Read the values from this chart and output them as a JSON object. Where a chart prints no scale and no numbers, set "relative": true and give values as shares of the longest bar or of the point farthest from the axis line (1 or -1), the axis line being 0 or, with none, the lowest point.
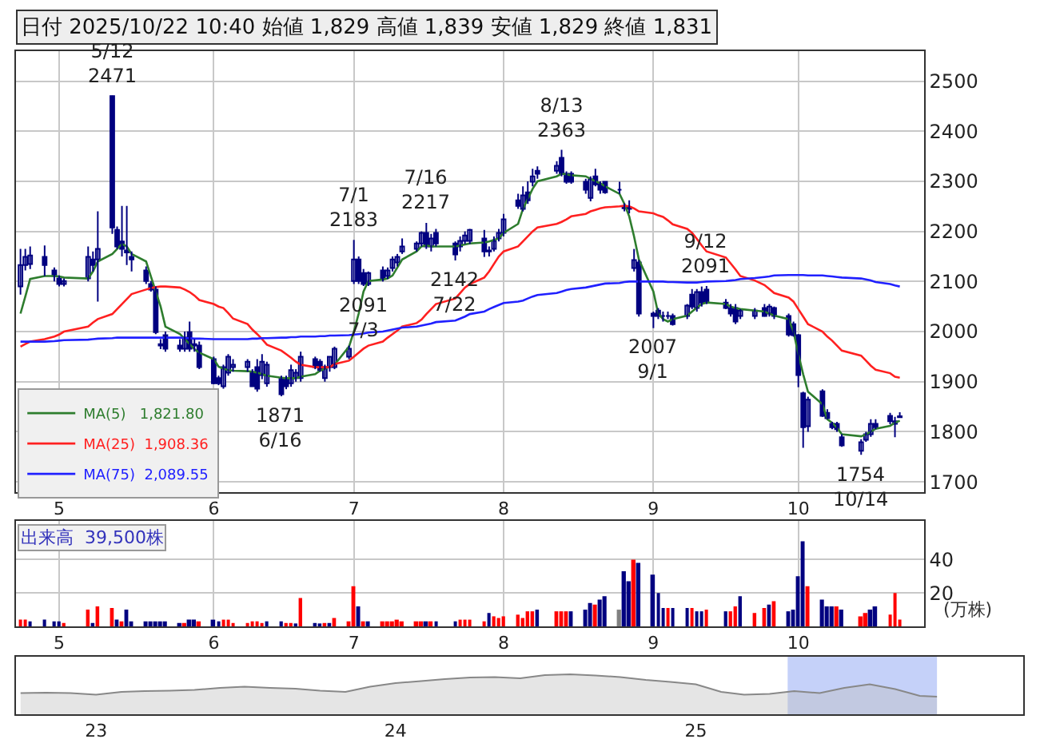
{
  "chart_data": [
    {
      "type": "candlestick",
      "title": "日付 2025/10/22 10:40 始値 1,829 高値 1,839 安値 1,829 終値 1,831",
      "x": [
        "2025-04-23",
        "2025-04-24",
        "2025-04-25",
        "2025-04-28",
        "2025-04-30",
        "2025-05-01",
        "2025-05-02",
        "2025-05-07",
        "2025-05-08",
        "2025-05-09",
        "2025-05-12",
        "2025-05-13",
        "2025-05-14",
        "2025-05-15",
        "2025-05-16",
        "2025-05-19",
        "2025-05-20",
        "2025-05-21",
        "2025-05-22",
        "2025-05-23",
        "2025-05-26",
        "2025-05-27",
        "2025-05-28",
        "2025-05-29",
        "2025-05-30",
        "2025-06-02",
        "2025-06-03",
        "2025-06-04",
        "2025-06-05",
        "2025-06-06",
        "2025-06-09",
        "2025-06-10",
        "2025-06-11",
        "2025-06-12",
        "2025-06-13",
        "2025-06-16",
        "2025-06-17",
        "2025-06-18",
        "2025-06-19",
        "2025-06-20",
        "2025-06-23",
        "2025-06-24",
        "2025-06-25",
        "2025-06-26",
        "2025-06-27",
        "2025-06-30",
        "2025-07-01",
        "2025-07-02",
        "2025-07-03",
        "2025-07-04",
        "2025-07-07",
        "2025-07-08",
        "2025-07-09",
        "2025-07-10",
        "2025-07-11",
        "2025-07-14",
        "2025-07-15",
        "2025-07-16",
        "2025-07-17",
        "2025-07-18",
        "2025-07-22",
        "2025-07-23",
        "2025-07-24",
        "2025-07-25",
        "2025-07-28",
        "2025-07-29",
        "2025-07-30",
        "2025-07-31",
        "2025-08-01",
        "2025-08-04",
        "2025-08-05",
        "2025-08-06",
        "2025-08-07",
        "2025-08-08",
        "2025-08-12",
        "2025-08-13",
        "2025-08-14",
        "2025-08-15",
        "2025-08-18",
        "2025-08-19",
        "2025-08-20",
        "2025-08-21",
        "2025-08-22",
        "2025-08-25",
        "2025-08-26",
        "2025-08-27",
        "2025-08-28",
        "2025-08-29",
        "2025-09-01",
        "2025-09-02",
        "2025-09-03",
        "2025-09-04",
        "2025-09-05",
        "2025-09-08",
        "2025-09-09",
        "2025-09-10",
        "2025-09-11",
        "2025-09-12",
        "2025-09-16",
        "2025-09-17",
        "2025-09-18",
        "2025-09-19",
        "2025-09-22",
        "2025-09-24",
        "2025-09-25",
        "2025-09-26",
        "2025-09-29",
        "2025-09-30",
        "2025-10-01",
        "2025-10-02",
        "2025-10-03",
        "2025-10-06",
        "2025-10-07",
        "2025-10-08",
        "2025-10-09",
        "2025-10-10",
        "2025-10-14",
        "2025-10-15",
        "2025-10-16",
        "2025-10-17",
        "2025-10-20",
        "2025-10-21",
        "2025-10-22"
      ],
      "ohlc": [
        [
          2090,
          2165,
          2074,
          2133
        ],
        [
          2133,
          2165,
          2122,
          2149
        ],
        [
          2135,
          2170,
          2125,
          2152
        ],
        [
          2149,
          2172,
          2111,
          2133
        ],
        [
          2122,
          2128,
          2100,
          2111
        ],
        [
          2106,
          2112,
          2090,
          2095
        ],
        [
          2095,
          2106,
          2090,
          2101
        ],
        [
          2106,
          2170,
          2100,
          2149
        ],
        [
          2144,
          2160,
          2120,
          2133
        ],
        [
          2144,
          2240,
          2060,
          2165
        ],
        [
          2470,
          2471,
          2195,
          2208
        ],
        [
          2203,
          2210,
          2165,
          2170
        ],
        [
          2180,
          2251,
          2150,
          2165
        ],
        [
          2162,
          2251,
          2133,
          2158
        ],
        [
          2149,
          2160,
          2120,
          2144
        ],
        [
          2122,
          2130,
          2095,
          2101
        ],
        [
          2095,
          2101,
          2080,
          2084
        ],
        [
          2084,
          2090,
          1995,
          1999
        ],
        [
          1975,
          1985,
          1965,
          1972
        ],
        [
          1993,
          2000,
          1960,
          1966
        ],
        [
          1972,
          1985,
          1960,
          1966
        ],
        [
          1966,
          2000,
          1960,
          1988
        ],
        [
          1999,
          2020,
          1960,
          1966
        ],
        [
          1975,
          1985,
          1960,
          1972
        ],
        [
          1972,
          1980,
          1925,
          1929
        ],
        [
          1945,
          1950,
          1895,
          1897
        ],
        [
          1907,
          1912,
          1893,
          1897
        ],
        [
          1891,
          1934,
          1886,
          1929
        ],
        [
          1918,
          1955,
          1912,
          1950
        ],
        [
          1929,
          1945,
          1920,
          1934
        ],
        [
          1929,
          1945,
          1920,
          1940
        ],
        [
          1918,
          1925,
          1890,
          1891
        ],
        [
          1929,
          1945,
          1880,
          1886
        ],
        [
          1913,
          1955,
          1905,
          1940
        ],
        [
          1897,
          1940,
          1890,
          1934
        ],
        [
          1907,
          1912,
          1871,
          1875
        ],
        [
          1907,
          1912,
          1885,
          1891
        ],
        [
          1897,
          1934,
          1890,
          1923
        ],
        [
          1907,
          1925,
          1900,
          1918
        ],
        [
          1907,
          1960,
          1900,
          1950
        ],
        [
          1945,
          1950,
          1925,
          1929
        ],
        [
          1940,
          1945,
          1920,
          1923
        ],
        [
          1907,
          1934,
          1900,
          1929
        ],
        [
          1929,
          1950,
          1920,
          1950
        ],
        [
          1929,
          1970,
          1925,
          1966
        ],
        [
          1950,
          1972,
          1945,
          1966
        ],
        [
          2101,
          2183,
          2095,
          2144
        ],
        [
          2144,
          2150,
          2095,
          2101
        ],
        [
          2117,
          2125,
          2091,
          2095
        ],
        [
          2095,
          2120,
          2091,
          2117
        ],
        [
          2122,
          2130,
          2100,
          2106
        ],
        [
          2111,
          2128,
          2105,
          2122
        ],
        [
          2127,
          2150,
          2120,
          2144
        ],
        [
          2138,
          2155,
          2130,
          2149
        ],
        [
          2160,
          2186,
          2155,
          2170
        ],
        [
          2165,
          2180,
          2160,
          2176
        ],
        [
          2176,
          2200,
          2170,
          2197
        ],
        [
          2197,
          2217,
          2165,
          2170
        ],
        [
          2170,
          2195,
          2160,
          2186
        ],
        [
          2197,
          2205,
          2170,
          2176
        ],
        [
          2176,
          2180,
          2142,
          2154
        ],
        [
          2170,
          2190,
          2160,
          2181
        ],
        [
          2181,
          2200,
          2175,
          2192
        ],
        [
          2181,
          2205,
          2175,
          2203
        ],
        [
          2186,
          2203,
          2149,
          2160
        ],
        [
          2160,
          2170,
          2150,
          2162
        ],
        [
          2165,
          2190,
          2160,
          2181
        ],
        [
          2186,
          2205,
          2180,
          2197
        ],
        [
          2197,
          2235,
          2190,
          2224
        ],
        [
          2262,
          2275,
          2245,
          2251
        ],
        [
          2245,
          2290,
          2240,
          2272
        ],
        [
          2278,
          2300,
          2255,
          2262
        ],
        [
          2299,
          2325,
          2290,
          2310
        ],
        [
          2321,
          2330,
          2305,
          2315
        ],
        [
          2321,
          2340,
          2315,
          2331
        ],
        [
          2347,
          2363,
          2310,
          2315
        ],
        [
          2315,
          2320,
          2295,
          2299
        ],
        [
          2315,
          2320,
          2295,
          2299
        ],
        [
          2299,
          2305,
          2275,
          2283
        ],
        [
          2267,
          2310,
          2260,
          2304
        ],
        [
          2310,
          2325,
          2290,
          2294
        ],
        [
          2294,
          2300,
          2275,
          2283
        ],
        [
          2299,
          2300,
          2275,
          2278
        ],
        [
          2283,
          2299,
          2275,
          2283
        ],
        [
          2251,
          2256,
          2240,
          2246
        ],
        [
          2248,
          2262,
          2236,
          2245
        ],
        [
          2127,
          2165,
          2120,
          2143
        ],
        [
          2138,
          2143,
          2030,
          2036
        ],
        [
          2036,
          2040,
          2007,
          2031
        ],
        [
          2042,
          2047,
          2025,
          2031
        ],
        [
          2031,
          2040,
          2020,
          2031
        ],
        [
          2031,
          2040,
          2025,
          2031
        ],
        [
          2031,
          2036,
          2012,
          2015
        ],
        [
          2031,
          2055,
          2025,
          2052
        ],
        [
          2074,
          2085,
          2045,
          2050
        ],
        [
          2047,
          2085,
          2040,
          2079
        ],
        [
          2079,
          2090,
          2050,
          2058
        ],
        [
          2084,
          2091,
          2055,
          2060
        ],
        [
          2058,
          2065,
          2045,
          2047
        ],
        [
          2047,
          2055,
          2030,
          2036
        ],
        [
          2047,
          2055,
          2015,
          2020
        ],
        [
          2031,
          2045,
          2025,
          2042
        ],
        [
          2031,
          2047,
          2025,
          2042
        ],
        [
          2047,
          2055,
          2030,
          2031
        ],
        [
          2036,
          2055,
          2030,
          2050
        ],
        [
          2047,
          2050,
          2025,
          2031
        ],
        [
          2031,
          2036,
          1990,
          1994
        ],
        [
          2015,
          2020,
          1990,
          1993
        ],
        [
          1993,
          1995,
          1889,
          1913
        ],
        [
          1877,
          1880,
          1768,
          1809
        ],
        [
          1811,
          1870,
          1800,
          1864
        ],
        [
          1881,
          1885,
          1830,
          1832
        ],
        [
          1838,
          1845,
          1825,
          1827
        ],
        [
          1816,
          1820,
          1805,
          1809
        ],
        [
          1816,
          1820,
          1800,
          1805
        ],
        [
          1789,
          1795,
          1770,
          1773
        ],
        [
          1762,
          1785,
          1754,
          1779
        ],
        [
          1784,
          1800,
          1780,
          1795
        ],
        [
          1795,
          1825,
          1790,
          1816
        ],
        [
          1816,
          1825,
          1805,
          1809
        ],
        [
          1832,
          1838,
          1815,
          1821
        ],
        [
          1816,
          1830,
          1789,
          1821
        ],
        [
          1829,
          1839,
          1829,
          1831
        ]
      ],
      "series": [
        {
          "name": "MA(5)   1,821.80",
          "type": "line",
          "color": "#2e7d2e",
          "values": [
            2036,
            2070,
            2105,
            2111,
            2111,
            2110,
            2108,
            2106,
            2120,
            2140,
            2155,
            2165,
            2175,
            2170,
            2155,
            2140,
            2110,
            2080,
            2050,
            2010,
            1995,
            1985,
            1975,
            1965,
            1958,
            1945,
            1930,
            1926,
            1923,
            1922,
            1921,
            1920,
            1918,
            1915,
            1912,
            1908,
            1907,
            1907,
            1907,
            1910,
            1915,
            1922,
            1926,
            1930,
            1934,
            1970,
            2000,
            2036,
            2080,
            2101,
            2104,
            2106,
            2112,
            2128,
            2144,
            2160,
            2170,
            2172,
            2170,
            2170,
            2170,
            2172,
            2174,
            2176,
            2178,
            2180,
            2183,
            2186,
            2197,
            2215,
            2245,
            2265,
            2285,
            2300,
            2310,
            2315,
            2314,
            2312,
            2310,
            2305,
            2300,
            2296,
            2290,
            2275,
            2255,
            2230,
            2190,
            2144,
            2080,
            2036,
            2025,
            2020,
            2025,
            2032,
            2040,
            2048,
            2055,
            2058,
            2055,
            2050,
            2047,
            2045,
            2042,
            2040,
            2036,
            2032,
            2025,
            2000,
            1955,
            1915,
            1880,
            1855,
            1825,
            1818,
            1808,
            1795,
            1791,
            1795,
            1800,
            1806,
            1812,
            1818,
            1822
          ]
        },
        {
          "name": "MA(25)  1,908.36",
          "type": "line",
          "color": "#ff2020",
          "values": [
            1970,
            1975,
            1980,
            1985,
            1990,
            1994,
            2000,
            2010,
            2018,
            2025,
            2035,
            2045,
            2055,
            2065,
            2075,
            2084,
            2087,
            2089,
            2090,
            2090,
            2088,
            2084,
            2079,
            2072,
            2063,
            2055,
            2050,
            2047,
            2037,
            2026,
            2015,
            2004,
            1995,
            1985,
            1974,
            1962,
            1955,
            1948,
            1940,
            1934,
            1929,
            1929,
            1929,
            1929,
            1935,
            1942,
            1950,
            1958,
            1966,
            1972,
            1980,
            1988,
            1995,
            2002,
            2010,
            2017,
            2024,
            2035,
            2045,
            2055,
            2066,
            2077,
            2088,
            2095,
            2108,
            2120,
            2135,
            2150,
            2160,
            2170,
            2180,
            2190,
            2200,
            2208,
            2215,
            2219,
            2224,
            2230,
            2235,
            2240,
            2243,
            2246,
            2248,
            2250,
            2251,
            2250,
            2246,
            2240,
            2236,
            2232,
            2229,
            2222,
            2214,
            2205,
            2197,
            2185,
            2172,
            2160,
            2148,
            2136,
            2124,
            2111,
            2102,
            2093,
            2085,
            2077,
            2068,
            2060,
            2045,
            2030,
            2015,
            2000,
            1990,
            1982,
            1972,
            1962,
            1952,
            1942,
            1932,
            1924,
            1917,
            1910,
            1908
          ]
        },
        {
          "name": "MA(75)  2,089.55",
          "type": "line",
          "color": "#2020ff",
          "values": [
            1980,
            1980,
            1980,
            1980,
            1981,
            1982,
            1983,
            1984,
            1985,
            1986,
            1987,
            1988,
            1988,
            1988,
            1988,
            1988,
            1988,
            1988,
            1988,
            1988,
            1988,
            1987,
            1987,
            1986,
            1986,
            1985,
            1985,
            1985,
            1985,
            1985,
            1985,
            1986,
            1986,
            1987,
            1987,
            1988,
            1988,
            1989,
            1989,
            1990,
            1990,
            1991,
            1991,
            1992,
            1992,
            1993,
            1994,
            1995,
            1996,
            1998,
            2000,
            2002,
            2004,
            2006,
            2008,
            2010,
            2012,
            2014,
            2016,
            2019,
            2022,
            2026,
            2030,
            2035,
            2040,
            2045,
            2049,
            2053,
            2057,
            2060,
            2062,
            2066,
            2070,
            2073,
            2077,
            2080,
            2083,
            2085,
            2088,
            2090,
            2092,
            2094,
            2096,
            2097,
            2099,
            2100,
            2100,
            2100,
            2100,
            2100,
            2100,
            2099,
            2099,
            2098,
            2098,
            2098,
            2099,
            2100,
            2101,
            2102,
            2103,
            2105,
            2107,
            2109,
            2110,
            2112,
            2113,
            2113,
            2113,
            2113,
            2112,
            2112,
            2111,
            2110,
            2109,
            2108,
            2106,
            2104,
            2102,
            2099,
            2095,
            2092,
            2090
          ]
        }
      ],
      "xlim": [
        "2025-04-22",
        "2025-10-27"
      ],
      "xticks": [
        {
          "value": "2025-05-01",
          "label": "5"
        },
        {
          "value": "2025-06-02",
          "label": "6"
        },
        {
          "value": "2025-07-01",
          "label": "7"
        },
        {
          "value": "2025-08-01",
          "label": "8"
        },
        {
          "value": "2025-09-01",
          "label": "9"
        },
        {
          "value": "2025-10-01",
          "label": "10"
        }
      ],
      "ylim": [
        1680,
        2560
      ],
      "yticks": [
        1700,
        1800,
        1900,
        2000,
        2100,
        2200,
        2300,
        2400,
        2500
      ],
      "annotations": [
        {
          "text": "5/12\n2471",
          "x": "2025-05-12",
          "y": 2471
        },
        {
          "text": "1871\n6/16",
          "x": "2025-06-16",
          "y": 1871
        },
        {
          "text": "7/1\n2183",
          "x": "2025-07-01",
          "y": 2183
        },
        {
          "text": "2091\n7/3",
          "x": "2025-07-03",
          "y": 2091
        },
        {
          "text": "7/16\n2217",
          "x": "2025-07-16",
          "y": 2217
        },
        {
          "text": "2142\n7/22",
          "x": "2025-07-22",
          "y": 2142
        },
        {
          "text": "8/13\n2363",
          "x": "2025-08-13",
          "y": 2363
        },
        {
          "text": "2007\n9/1",
          "x": "2025-09-01",
          "y": 2007
        },
        {
          "text": "9/12\n2091",
          "x": "2025-09-12",
          "y": 2091
        },
        {
          "text": "1754\n10/14",
          "x": "2025-10-14",
          "y": 1754
        }
      ],
      "grid": true,
      "legend": "bottom left"
    },
    {
      "type": "bar",
      "title": "出来高  39,500株",
      "ylabel": "(万株)",
      "x": [
        "2025-04-23",
        "2025-04-24",
        "2025-04-25",
        "2025-04-28",
        "2025-04-30",
        "2025-05-01",
        "2025-05-02",
        "2025-05-07",
        "2025-05-08",
        "2025-05-09",
        "2025-05-12",
        "2025-05-13",
        "2025-05-14",
        "2025-05-15",
        "2025-05-16",
        "2025-05-19",
        "2025-05-20",
        "2025-05-21",
        "2025-05-22",
        "2025-05-23",
        "2025-05-26",
        "2025-05-27",
        "2025-05-28",
        "2025-05-29",
        "2025-05-30",
        "2025-06-02",
        "2025-06-03",
        "2025-06-04",
        "2025-06-05",
        "2025-06-06",
        "2025-06-09",
        "2025-06-10",
        "2025-06-11",
        "2025-06-12",
        "2025-06-13",
        "2025-06-16",
        "2025-06-17",
        "2025-06-18",
        "2025-06-19",
        "2025-06-20",
        "2025-06-23",
        "2025-06-24",
        "2025-06-25",
        "2025-06-26",
        "2025-06-27",
        "2025-06-30",
        "2025-07-01",
        "2025-07-02",
        "2025-07-03",
        "2025-07-04",
        "2025-07-07",
        "2025-07-08",
        "2025-07-09",
        "2025-07-10",
        "2025-07-11",
        "2025-07-14",
        "2025-07-15",
        "2025-07-16",
        "2025-07-17",
        "2025-07-18",
        "2025-07-22",
        "2025-07-23",
        "2025-07-24",
        "2025-07-25",
        "2025-07-28",
        "2025-07-29",
        "2025-07-30",
        "2025-07-31",
        "2025-08-01",
        "2025-08-04",
        "2025-08-05",
        "2025-08-06",
        "2025-08-07",
        "2025-08-08",
        "2025-08-12",
        "2025-08-13",
        "2025-08-14",
        "2025-08-15",
        "2025-08-18",
        "2025-08-19",
        "2025-08-20",
        "2025-08-21",
        "2025-08-22",
        "2025-08-25",
        "2025-08-26",
        "2025-08-27",
        "2025-08-28",
        "2025-08-29",
        "2025-09-01",
        "2025-09-02",
        "2025-09-03",
        "2025-09-04",
        "2025-09-05",
        "2025-09-08",
        "2025-09-09",
        "2025-09-10",
        "2025-09-11",
        "2025-09-12",
        "2025-09-16",
        "2025-09-17",
        "2025-09-18",
        "2025-09-19",
        "2025-09-22",
        "2025-09-24",
        "2025-09-25",
        "2025-09-26",
        "2025-09-29",
        "2025-09-30",
        "2025-10-01",
        "2025-10-02",
        "2025-10-03",
        "2025-10-06",
        "2025-10-07",
        "2025-10-08",
        "2025-10-09",
        "2025-10-10",
        "2025-10-14",
        "2025-10-15",
        "2025-10-16",
        "2025-10-17",
        "2025-10-20",
        "2025-10-21",
        "2025-10-22"
      ],
      "values": [
        4,
        4,
        3,
        4,
        3,
        3,
        2,
        10,
        2,
        12,
        11,
        4,
        3,
        10,
        3,
        3,
        3,
        3,
        3,
        3,
        2,
        2,
        4,
        4,
        3,
        4,
        3,
        4,
        4,
        2,
        2,
        3,
        3,
        2,
        3,
        3,
        2,
        2,
        1,
        17,
        2,
        1,
        2,
        2,
        5,
        3,
        24,
        12,
        3,
        3,
        3,
        3,
        3,
        4,
        3,
        3,
        3,
        3,
        3,
        3,
        3,
        4,
        4,
        4,
        3,
        8,
        6,
        5,
        6,
        7,
        5,
        9,
        9,
        10,
        9,
        9,
        9,
        9,
        10,
        14,
        13,
        16,
        18,
        10,
        33,
        27,
        40,
        38,
        31,
        20,
        11,
        11,
        11,
        11,
        11,
        9,
        9,
        10,
        9,
        9,
        12,
        18,
        8,
        11,
        13,
        15,
        9,
        10,
        30,
        51,
        24,
        16,
        12,
        12,
        12,
        10,
        6,
        8,
        10,
        12,
        7,
        20,
        4
      ],
      "colors": [
        "#ff0000",
        "#ff0000",
        "#000080",
        "#000080",
        "#000080",
        "#000080",
        "#ff0000",
        "#ff0000",
        "#000080",
        "#ff0000",
        "#ff0000",
        "#000080",
        "#ff0000",
        "#000080",
        "#000080",
        "#000080",
        "#000080",
        "#000080",
        "#000080",
        "#000080",
        "#000080",
        "#ff0000",
        "#000080",
        "#000080",
        "#ff0000",
        "#000080",
        "#000080",
        "#ff0000",
        "#ff0000",
        "#ff0000",
        "#ff0000",
        "#ff0000",
        "#ff0000",
        "#ff0000",
        "#000080",
        "#000080",
        "#ff0000",
        "#ff0000",
        "#000080",
        "#ff0000",
        "#000080",
        "#000080",
        "#ff0000",
        "#000080",
        "#ff0000",
        "#ff0000",
        "#ff0000",
        "#000080",
        "#ff0000",
        "#000080",
        "#ff0000",
        "#ff0000",
        "#ff0000",
        "#ff0000",
        "#ff0000",
        "#ff0000",
        "#ff0000",
        "#000080",
        "#ff0000",
        "#000080",
        "#000080",
        "#ff0000",
        "#ff0000",
        "#ff0000",
        "#ff0000",
        "#000080",
        "#ff0000",
        "#ff0000",
        "#ff0000",
        "#ff0000",
        "#ff0000",
        "#ff0000",
        "#ff0000",
        "#000080",
        "#ff0000",
        "#ff0000",
        "#ff0000",
        "#000080",
        "#000080",
        "#000080",
        "#ff0000",
        "#000080",
        "#000080",
        "#808080",
        "#000080",
        "#000080",
        "#ff0000",
        "#000080",
        "#000080",
        "#000080",
        "#000080",
        "#ff0000",
        "#000080",
        "#000080",
        "#ff0000",
        "#000080",
        "#000080",
        "#ff0000",
        "#000080",
        "#ff0000",
        "#ff0000",
        "#000080",
        "#ff0000",
        "#ff0000",
        "#000080",
        "#ff0000",
        "#000080",
        "#000080",
        "#000080",
        "#000080",
        "#ff0000",
        "#000080",
        "#000080",
        "#000080",
        "#ff0000",
        "#000080",
        "#ff0000",
        "#ff0000",
        "#000080",
        "#000080",
        "#ff0000",
        "#ff0000",
        "#ff0000"
      ],
      "xlim": [
        "2025-04-22",
        "2025-10-27"
      ],
      "xticks": [
        {
          "value": "2025-05-01",
          "label": "5"
        },
        {
          "value": "2025-06-02",
          "label": "6"
        },
        {
          "value": "2025-07-01",
          "label": "7"
        },
        {
          "value": "2025-08-01",
          "label": "8"
        },
        {
          "value": "2025-09-01",
          "label": "9"
        },
        {
          "value": "2025-10-01",
          "label": "10"
        }
      ],
      "ylim": [
        0,
        63
      ],
      "yticks": [
        20,
        40
      ],
      "grid": true
    },
    {
      "type": "area",
      "relative": true,
      "x": [
        "2022-10-01",
        "2022-11-01",
        "2022-12-01",
        "2023-01-01",
        "2023-02-01",
        "2023-03-01",
        "2023-04-01",
        "2023-05-01",
        "2023-06-01",
        "2023-07-01",
        "2023-08-01",
        "2023-09-01",
        "2023-10-01",
        "2023-11-01",
        "2023-12-01",
        "2024-01-01",
        "2024-02-01",
        "2024-03-01",
        "2024-04-01",
        "2024-05-01",
        "2024-06-01",
        "2024-07-01",
        "2024-08-01",
        "2024-09-01",
        "2024-10-01",
        "2024-11-01",
        "2024-12-01",
        "2025-01-01",
        "2025-02-01",
        "2025-03-01",
        "2025-04-01",
        "2025-05-01",
        "2025-06-01",
        "2025-07-01",
        "2025-08-01",
        "2025-09-01",
        "2025-10-01",
        "2025-10-22"
      ],
      "values": [
        0.53,
        0.54,
        0.53,
        0.49,
        0.56,
        0.58,
        0.59,
        0.61,
        0.66,
        0.69,
        0.66,
        0.64,
        0.59,
        0.56,
        0.69,
        0.78,
        0.83,
        0.88,
        0.92,
        0.93,
        0.9,
        0.98,
        1,
        0.97,
        0.93,
        0.86,
        0.81,
        0.75,
        0.56,
        0.49,
        0.51,
        0.58,
        0.53,
        0.66,
        0.75,
        0.63,
        0.46,
        0.44
      ],
      "color": "#888888",
      "xlim": [
        "2022-09-25",
        "2026-02-04"
      ],
      "xticks": [
        {
          "value": "2023-01-01",
          "label": "23"
        },
        {
          "value": "2024-01-01",
          "label": "24"
        },
        {
          "value": "2025-01-01",
          "label": "25"
        }
      ],
      "bands": [
        {
          "axis": "x",
          "from": "2025-04-23",
          "to": "2025-10-22",
          "color": "#9fb2f5"
        }
      ]
    }
  ]
}
